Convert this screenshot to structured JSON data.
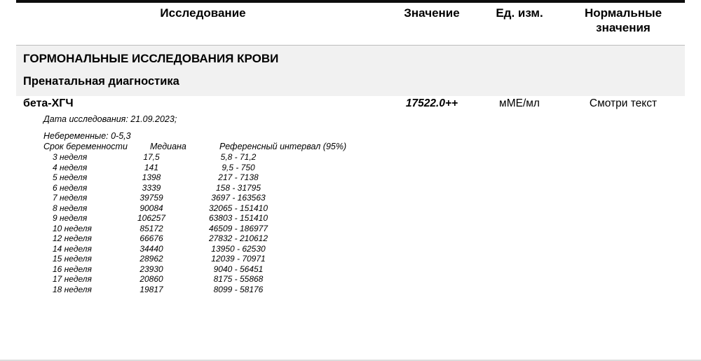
{
  "header": {
    "col_study": "Исследование",
    "col_value": "Значение",
    "col_unit": "Ед. изм.",
    "col_normal": "Нормальные значения"
  },
  "sections": {
    "group_title": "ГОРМОНАЛЬНЫЕ ИССЛЕДОВАНИЯ КРОВИ",
    "subgroup_title": "Пренатальная диагностика"
  },
  "result": {
    "name": "бета-ХГЧ",
    "value": "17522.0++",
    "unit": "мМЕ/мл",
    "normal": "Смотри текст"
  },
  "details": {
    "study_date": "Дата исследования: 21.09.2023;",
    "non_pregnant": "Небеременные: 0-5,3"
  },
  "reference_table": {
    "col_term": "Срок беременности",
    "col_median": "Медиана",
    "col_interval": "Референсный интервал (95%)",
    "rows": [
      {
        "term": "3 неделя",
        "median": "17,5",
        "interval": "5,8 - 71,2"
      },
      {
        "term": "4 неделя",
        "median": "141",
        "interval": "9,5 - 750"
      },
      {
        "term": "5 неделя",
        "median": "1398",
        "interval": "217 - 7138"
      },
      {
        "term": "6 неделя",
        "median": "3339",
        "interval": "158 - 31795"
      },
      {
        "term": "7 неделя",
        "median": "39759",
        "interval": "3697 - 163563"
      },
      {
        "term": "8 неделя",
        "median": "90084",
        "interval": "32065 - 151410"
      },
      {
        "term": "9 неделя",
        "median": "106257",
        "interval": "63803 - 151410"
      },
      {
        "term": "10 неделя",
        "median": "85172",
        "interval": "46509 - 186977"
      },
      {
        "term": "12 неделя",
        "median": "66676",
        "interval": "27832 - 210612"
      },
      {
        "term": "14 неделя",
        "median": "34440",
        "interval": "13950 - 62530"
      },
      {
        "term": "15 неделя",
        "median": "28962",
        "interval": "12039 - 70971"
      },
      {
        "term": "16 неделя",
        "median": "23930",
        "interval": "9040 - 56451"
      },
      {
        "term": "17 неделя",
        "median": "20860",
        "interval": "8175 - 55868"
      },
      {
        "term": "18 неделя",
        "median": "19817",
        "interval": "8099 - 58176"
      }
    ]
  },
  "colors": {
    "section_band_bg": "#f1f1f1",
    "top_rule": "#0d0d0d",
    "bottom_rule": "#dcdcdc"
  }
}
